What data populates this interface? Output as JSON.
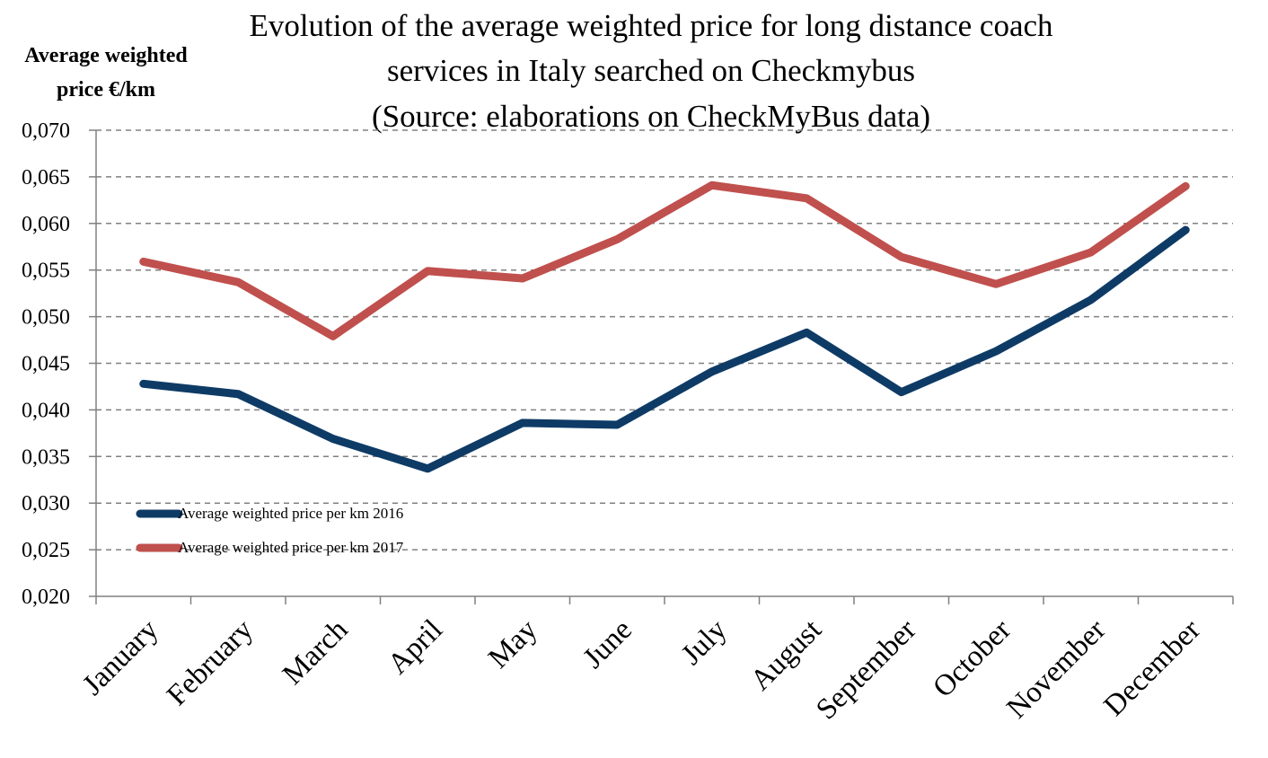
{
  "chart_data": {
    "type": "line",
    "title": [
      "Evolution of the average weighted price for long distance coach",
      "services in Italy searched on Checkmybus",
      "(Source: elaborations on CheckMyBus data)"
    ],
    "ylabel": [
      "Average weighted",
      "price €/km"
    ],
    "xlabel": "",
    "categories": [
      "January",
      "February",
      "March",
      "April",
      "May",
      "June",
      "July",
      "August",
      "September",
      "October",
      "November",
      "December"
    ],
    "ylim": [
      0.02,
      0.07
    ],
    "yticks": [
      "0,020",
      "0,025",
      "0,030",
      "0,035",
      "0,040",
      "0,045",
      "0,050",
      "0,055",
      "0,060",
      "0,065",
      "0,070"
    ],
    "grid": true,
    "legend_position": "bottom-left",
    "series": [
      {
        "name": "Average weighted price per km 2016",
        "color": "#0E3B66",
        "values": [
          0.0428,
          0.0417,
          0.0369,
          0.0337,
          0.0386,
          0.0384,
          0.0441,
          0.0483,
          0.0419,
          0.0463,
          0.0518,
          0.0593
        ]
      },
      {
        "name": "Average weighted price per km 2017",
        "color": "#C0504D",
        "values": [
          0.0559,
          0.0537,
          0.0479,
          0.0549,
          0.0541,
          0.0583,
          0.0641,
          0.0627,
          0.0564,
          0.0535,
          0.0569,
          0.064
        ]
      }
    ]
  }
}
